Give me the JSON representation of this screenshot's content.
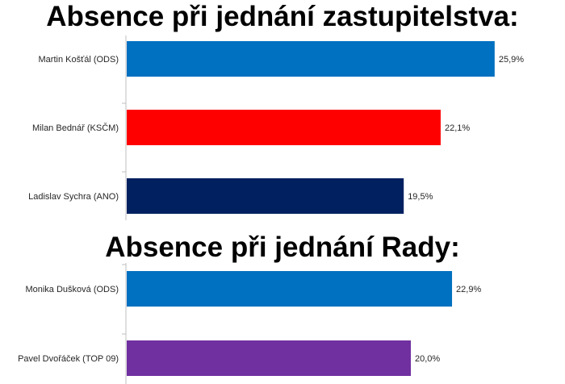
{
  "titles": {
    "council": "Absence při jednání zastupitelstva:",
    "board": "Absence při jednání Rady:"
  },
  "chart_data": [
    {
      "type": "bar",
      "orientation": "horizontal",
      "title": "Absence při jednání zastupitelstva:",
      "categories": [
        "Martin Košťál (ODS)",
        "Milan Bednář (KSČM)",
        "Ladislav Sychra (ANO)"
      ],
      "values": [
        25.9,
        22.1,
        19.5
      ],
      "value_labels": [
        "25,9%",
        "22,1%",
        "19,5%"
      ],
      "colors": [
        "#0070c0",
        "#ff0000",
        "#002060"
      ],
      "xlim": [
        0,
        30
      ],
      "grid": false,
      "legend": "none"
    },
    {
      "type": "bar",
      "orientation": "horizontal",
      "title": "Absence při jednání Rady:",
      "categories": [
        "Monika Dušková (ODS)",
        "Pavel Dvořáček (TOP 09)"
      ],
      "values": [
        22.9,
        20.0
      ],
      "value_labels": [
        "22,9%",
        "20,0%"
      ],
      "colors": [
        "#0070c0",
        "#7030a0"
      ],
      "xlim": [
        0,
        30
      ],
      "grid": false,
      "legend": "none"
    }
  ]
}
